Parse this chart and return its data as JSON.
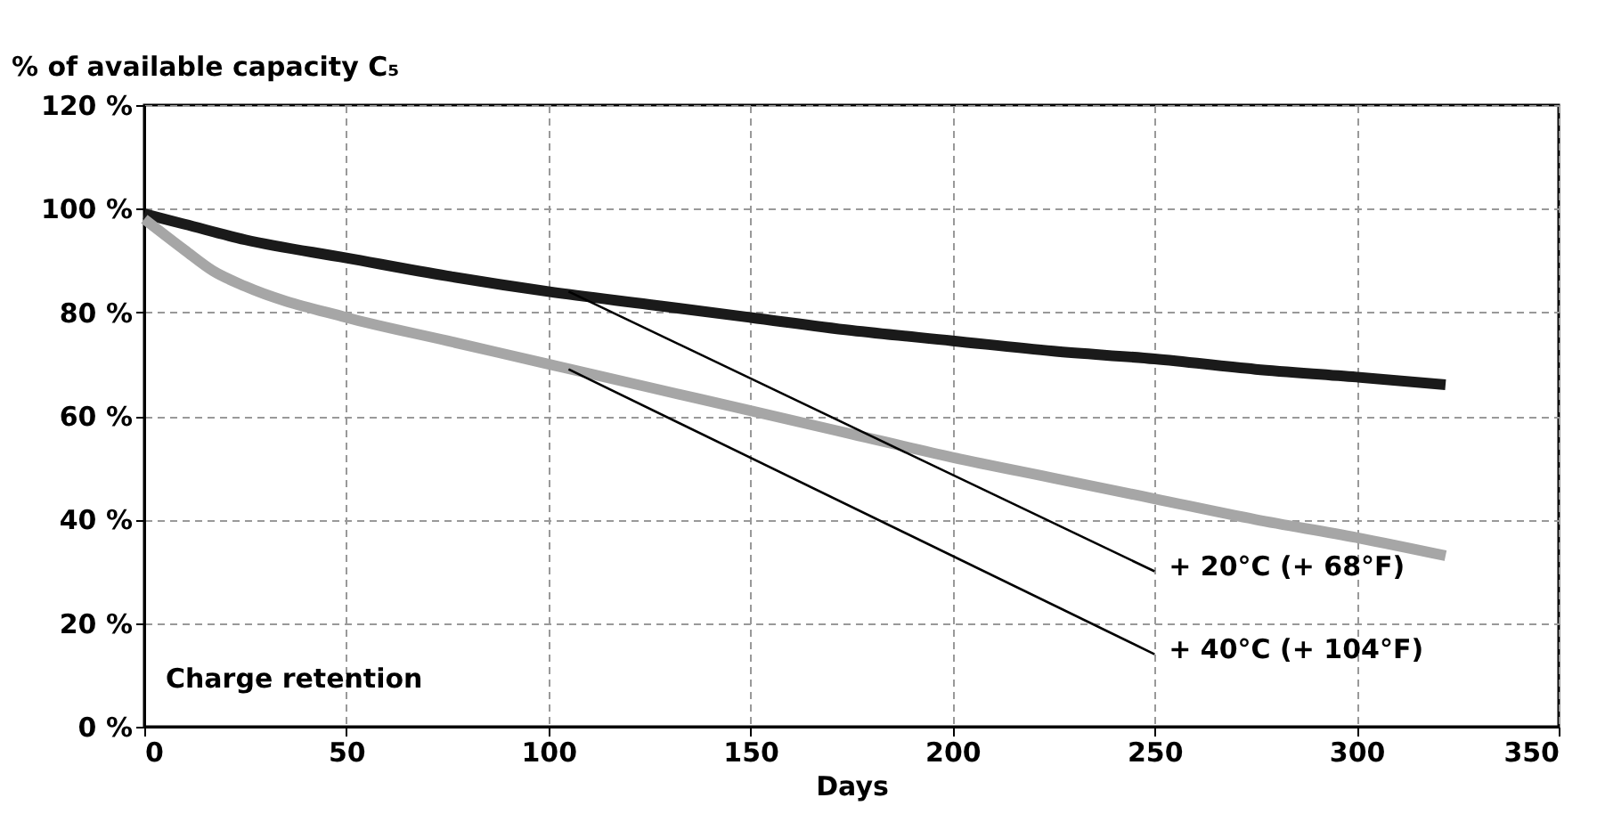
{
  "chart_data": {
    "type": "line",
    "xlabel": "Days",
    "ylabel": "% of available capacity C₅",
    "x": [
      0,
      10,
      25,
      50,
      75,
      100,
      125,
      150,
      175,
      200,
      225,
      250,
      275,
      300,
      322
    ],
    "series": [
      {
        "color": "#1a1a1a",
        "values": [
          99,
          97,
          94,
          90.5,
          87,
          84,
          81.5,
          79,
          76.5,
          74.5,
          72.5,
          71,
          69,
          67.5,
          66
        ]
      },
      {
        "color": "#a6a6a6",
        "x": [
          0,
          10,
          17,
          25,
          50,
          75,
          100,
          125,
          150,
          175,
          200,
          225,
          250,
          275,
          300,
          322
        ],
        "values": [
          98,
          92,
          88,
          85,
          79,
          74.5,
          70,
          65.5,
          61,
          56.5,
          52,
          48,
          44,
          40,
          36.5,
          33
        ]
      },
      {
        "color": "#000000",
        "x": [
          105,
          250
        ],
        "values": [
          84,
          30
        ]
      },
      {
        "color": "#000000",
        "x": [
          105,
          250
        ],
        "values": [
          69,
          14
        ]
      }
    ],
    "annotations": [
      {
        "text": "+ 20°C (+ 68°F)",
        "x": 250,
        "y": 30
      },
      {
        "text": "+ 40°C (+ 104°F)",
        "x": 250,
        "y": 14
      },
      "Charge retention"
    ],
    "xlim": [
      0,
      350
    ],
    "xticks": [
      0,
      50,
      100,
      150,
      200,
      250,
      300,
      350
    ],
    "ylim": [
      0,
      120
    ],
    "yticks": [
      {
        "value": 0,
        "label": "0 %"
      },
      {
        "value": 20,
        "label": "20 %"
      },
      {
        "value": 40,
        "label": "40 %"
      },
      {
        "value": 60,
        "label": "60 %"
      },
      {
        "value": 80,
        "label": "80 %"
      },
      {
        "value": 100,
        "label": "100 %"
      },
      {
        "value": 120,
        "label": "120 %"
      }
    ],
    "grid": true
  }
}
